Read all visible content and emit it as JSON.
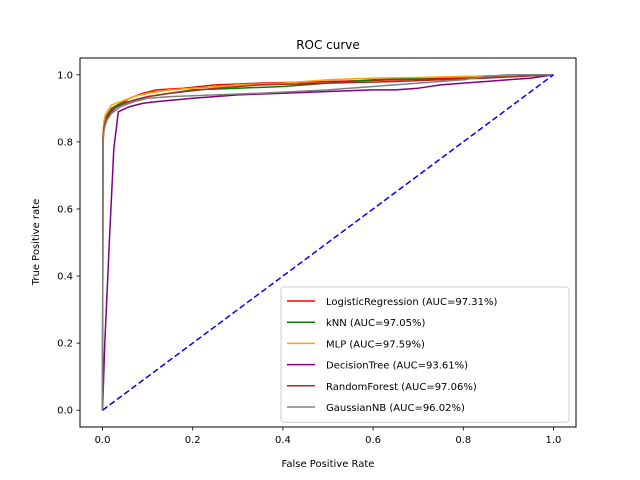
{
  "chart_data": {
    "type": "line",
    "title": "ROC curve",
    "xlabel": "False Positive Rate",
    "ylabel": "True Positive rate",
    "xlim": [
      -0.05,
      1.05
    ],
    "ylim": [
      -0.05,
      1.05
    ],
    "x_ticks": [
      "0.0",
      "0.2",
      "0.4",
      "0.6",
      "0.8",
      "1.0"
    ],
    "y_ticks": [
      "0.0",
      "0.2",
      "0.4",
      "0.6",
      "0.8",
      "1.0"
    ],
    "grid": false,
    "legend_position": "lower-right",
    "reference_line": {
      "color": "#0000ff",
      "style": "dashed",
      "x": [
        0,
        1
      ],
      "y": [
        0,
        1
      ]
    },
    "series": [
      {
        "name": "LogisticRegression (AUC=97.31%)",
        "color": "#ff0000",
        "x": [
          0,
          0.001,
          0.003,
          0.006,
          0.01,
          0.02,
          0.035,
          0.06,
          0.09,
          0.12,
          0.18,
          0.25,
          0.35,
          0.5,
          0.65,
          0.8,
          0.9,
          1.0
        ],
        "y": [
          0,
          0.8,
          0.84,
          0.86,
          0.87,
          0.89,
          0.91,
          0.93,
          0.945,
          0.955,
          0.96,
          0.97,
          0.975,
          0.98,
          0.985,
          0.99,
          0.995,
          1.0
        ]
      },
      {
        "name": "kNN (AUC=97.05%)",
        "color": "#008000",
        "x": [
          0,
          0.001,
          0.003,
          0.006,
          0.01,
          0.02,
          0.04,
          0.06,
          0.1,
          0.15,
          0.2,
          0.3,
          0.4,
          0.5,
          0.6,
          0.7,
          0.8,
          0.9,
          1.0
        ],
        "y": [
          0,
          0.82,
          0.85,
          0.87,
          0.88,
          0.9,
          0.915,
          0.92,
          0.935,
          0.945,
          0.955,
          0.96,
          0.965,
          0.975,
          0.985,
          0.99,
          0.995,
          0.998,
          1.0
        ]
      },
      {
        "name": "MLP (AUC=97.59%)",
        "color": "#ffa500",
        "x": [
          0,
          0.001,
          0.003,
          0.006,
          0.01,
          0.02,
          0.04,
          0.07,
          0.1,
          0.15,
          0.2,
          0.3,
          0.4,
          0.5,
          0.6,
          0.7,
          0.8,
          0.9,
          1.0
        ],
        "y": [
          0,
          0.83,
          0.86,
          0.88,
          0.89,
          0.91,
          0.92,
          0.935,
          0.945,
          0.955,
          0.96,
          0.97,
          0.975,
          0.985,
          0.99,
          0.992,
          0.995,
          0.998,
          1.0
        ]
      },
      {
        "name": "DecisionTree (AUC=93.61%)",
        "color": "#800080",
        "x": [
          0,
          0.005,
          0.015,
          0.025,
          0.035,
          0.06,
          0.09,
          0.12,
          0.2,
          0.3,
          0.4,
          0.5,
          0.6,
          0.65,
          0.7,
          0.75,
          0.8,
          0.85,
          0.9,
          0.95,
          1.0
        ],
        "y": [
          0,
          0.2,
          0.5,
          0.78,
          0.89,
          0.905,
          0.915,
          0.92,
          0.93,
          0.94,
          0.945,
          0.95,
          0.955,
          0.955,
          0.96,
          0.97,
          0.975,
          0.98,
          0.985,
          0.99,
          1.0
        ]
      },
      {
        "name": "RandomForest (AUC=97.06%)",
        "color": "#a52a2a",
        "x": [
          0,
          0.001,
          0.003,
          0.006,
          0.01,
          0.02,
          0.04,
          0.07,
          0.1,
          0.15,
          0.25,
          0.35,
          0.5,
          0.65,
          0.75,
          0.85,
          0.92,
          1.0
        ],
        "y": [
          0,
          0.81,
          0.84,
          0.86,
          0.875,
          0.895,
          0.91,
          0.925,
          0.935,
          0.945,
          0.96,
          0.97,
          0.975,
          0.98,
          0.985,
          0.99,
          0.995,
          1.0
        ]
      },
      {
        "name": "GaussianNB (AUC=96.02%)",
        "color": "#808080",
        "x": [
          0,
          0.001,
          0.003,
          0.006,
          0.01,
          0.02,
          0.04,
          0.07,
          0.1,
          0.15,
          0.25,
          0.35,
          0.5,
          0.6,
          0.7,
          0.8,
          0.85,
          0.9,
          1.0
        ],
        "y": [
          0,
          0.8,
          0.83,
          0.85,
          0.865,
          0.885,
          0.905,
          0.92,
          0.93,
          0.935,
          0.94,
          0.945,
          0.955,
          0.965,
          0.975,
          0.985,
          0.995,
          1.0,
          1.0
        ]
      }
    ]
  }
}
